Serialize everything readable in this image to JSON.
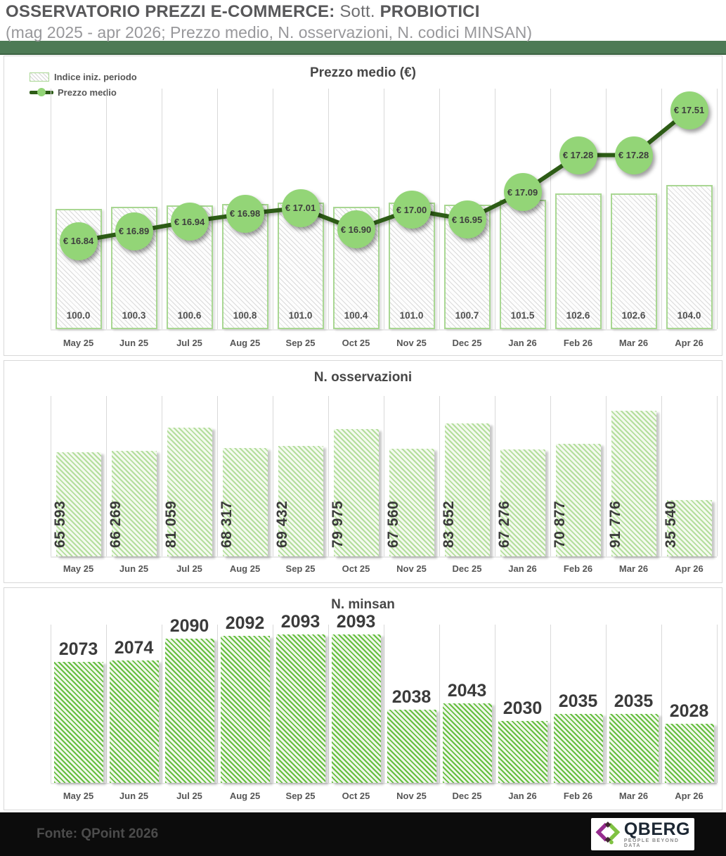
{
  "header": {
    "title_main": "OSSERVATORIO PREZZI E-COMMERCE:",
    "title_mid": " Sott. ",
    "title_strong": "PROBIOTICI",
    "subtitle": "(mag 2025 - apr 2026; Prezzo medio, N. osservazioni, N. codici MINSAN)"
  },
  "months": [
    "May 25",
    "Jun 25",
    "Jul 25",
    "Aug 25",
    "Sep 25",
    "Oct 25",
    "Nov 25",
    "Dec 25",
    "Jan 26",
    "Feb 26",
    "Mar 26",
    "Apr 26"
  ],
  "chart_data": [
    {
      "type": "combo-bar-line",
      "title": "Prezzo medio (€)",
      "legend": [
        "Indice iniz. periodo",
        "Prezzo medio"
      ],
      "legend_position": "top-left",
      "grid": "vertical",
      "categories": [
        "May 25",
        "Jun 25",
        "Jul 25",
        "Aug 25",
        "Sep 25",
        "Oct 25",
        "Nov 25",
        "Dec 25",
        "Jan 26",
        "Feb 26",
        "Mar 26",
        "Apr 26"
      ],
      "series": [
        {
          "name": "Indice iniz. periodo",
          "type": "bar",
          "values": [
            100.0,
            100.3,
            100.6,
            100.8,
            101.0,
            100.4,
            101.0,
            100.7,
            101.5,
            102.6,
            102.6,
            104.0
          ],
          "labels": [
            "100.0",
            "100.3",
            "100.6",
            "100.8",
            "101.0",
            "100.4",
            "101.0",
            "100.7",
            "101.5",
            "102.6",
            "102.6",
            "104.0"
          ],
          "ylim": [
            80,
            120
          ]
        },
        {
          "name": "Prezzo medio",
          "type": "line",
          "values": [
            16.84,
            16.89,
            16.94,
            16.98,
            17.01,
            16.9,
            17.0,
            16.95,
            17.09,
            17.28,
            17.28,
            17.51
          ],
          "labels": [
            "€ 16.84",
            "€ 16.89",
            "€ 16.94",
            "€ 16.98",
            "€ 17.01",
            "€ 16.90",
            "€ 17.00",
            "€ 16.95",
            "€ 17.09",
            "€ 17.28",
            "€ 17.28",
            "€ 17.51"
          ],
          "ylim": [
            16.39,
            17.62
          ]
        }
      ]
    },
    {
      "type": "bar",
      "title": "N. osservazioni",
      "grid": "vertical",
      "value_label_rotation": 90,
      "categories": [
        "May 25",
        "Jun 25",
        "Jul 25",
        "Aug 25",
        "Sep 25",
        "Oct 25",
        "Nov 25",
        "Dec 25",
        "Jan 26",
        "Feb 26",
        "Mar 26",
        "Apr 26"
      ],
      "values": [
        65593,
        66269,
        81059,
        68317,
        69432,
        79975,
        67560,
        83652,
        67276,
        70877,
        91776,
        35540
      ],
      "labels": [
        "65 593",
        "66 269",
        "81 059",
        "68 317",
        "69 432",
        "79 975",
        "67 560",
        "83 652",
        "67 276",
        "70 877",
        "91 776",
        "35 540"
      ],
      "ylim": [
        0,
        101000
      ]
    },
    {
      "type": "bar",
      "title": "N. minsan",
      "grid": "vertical",
      "value_label_rotation": 0,
      "categories": [
        "May 25",
        "Jun 25",
        "Jul 25",
        "Aug 25",
        "Sep 25",
        "Oct 25",
        "Nov 25",
        "Dec 25",
        "Jan 26",
        "Feb 26",
        "Mar 26",
        "Apr 26"
      ],
      "values": [
        2073,
        2074,
        2090,
        2092,
        2093,
        2093,
        2038,
        2043,
        2030,
        2035,
        2035,
        2028
      ],
      "labels": [
        "2073",
        "2074",
        "2090",
        "2092",
        "2093",
        "2093",
        "2038",
        "2043",
        "2030",
        "2035",
        "2035",
        "2028"
      ],
      "ylim": [
        1985,
        2100
      ]
    }
  ],
  "colors": {
    "accent_green_light": "#93d577",
    "accent_green_dark": "#2d5c16",
    "bar_border_green": "#a9d793",
    "hatch_green_soft": "#7ec658",
    "hatch_green_bright": "#64bd3e",
    "divider_band_green": "#4d7a55",
    "gridline_gray": "#d9d9d9",
    "text_gray": "#565656",
    "subtitle_gray": "#98989b",
    "footer_bg": "#0c0c0c",
    "logo_purple": "#962c8e",
    "logo_green": "#7fc242",
    "logo_dark": "#3f2630"
  },
  "footer": {
    "source": "Fonte: QPoint 2026",
    "logo_text": "QBERG",
    "logo_tagline": "PEOPLE BEYOND DATA"
  }
}
